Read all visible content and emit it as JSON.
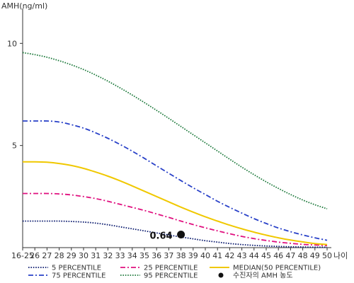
{
  "chart_data": {
    "type": "line",
    "ylabel": "AMH(ng/ml)",
    "xlabel": "나이",
    "categories": [
      "16-25",
      "26",
      "27",
      "28",
      "29",
      "30",
      "31",
      "32",
      "33",
      "34",
      "35",
      "36",
      "37",
      "38",
      "39",
      "40",
      "41",
      "42",
      "43",
      "44",
      "45",
      "46",
      "47",
      "48",
      "49",
      "50"
    ],
    "yticks": [
      5,
      10
    ],
    "ylim": [
      0,
      11.5
    ],
    "grid": false,
    "legend_position": "bottom",
    "series": [
      {
        "name": "5 PERCENTILE",
        "color": "#0a1a6e",
        "style": "dotted",
        "values": [
          1.3,
          1.3,
          1.3,
          1.3,
          1.28,
          1.25,
          1.2,
          1.12,
          1.02,
          0.92,
          0.82,
          0.72,
          0.62,
          0.52,
          0.43,
          0.34,
          0.27,
          0.2,
          0.15,
          0.11,
          0.08,
          0.06,
          0.04,
          0.03,
          0.02,
          0.02
        ]
      },
      {
        "name": "25 PERCENTILE",
        "color": "#e0107f",
        "style": "dash-dot",
        "values": [
          2.65,
          2.65,
          2.65,
          2.63,
          2.58,
          2.5,
          2.4,
          2.27,
          2.12,
          1.97,
          1.82,
          1.65,
          1.48,
          1.3,
          1.13,
          0.97,
          0.82,
          0.68,
          0.55,
          0.44,
          0.35,
          0.27,
          0.21,
          0.16,
          0.13,
          0.1
        ]
      },
      {
        "name": "MEDIAN(50 PERCENTILE)",
        "color": "#f0c800",
        "style": "solid",
        "values": [
          4.2,
          4.2,
          4.18,
          4.12,
          4.02,
          3.88,
          3.7,
          3.5,
          3.27,
          3.02,
          2.76,
          2.5,
          2.24,
          1.98,
          1.74,
          1.51,
          1.3,
          1.1,
          0.92,
          0.76,
          0.61,
          0.48,
          0.37,
          0.28,
          0.2,
          0.15
        ]
      },
      {
        "name": "75 PERCENTILE",
        "color": "#2840c8",
        "style": "dash-dot",
        "values": [
          6.2,
          6.2,
          6.2,
          6.15,
          6.02,
          5.85,
          5.62,
          5.35,
          5.05,
          4.72,
          4.37,
          4.0,
          3.64,
          3.28,
          2.93,
          2.6,
          2.27,
          1.97,
          1.69,
          1.42,
          1.18,
          0.96,
          0.78,
          0.62,
          0.48,
          0.36
        ]
      },
      {
        "name": "95 PERCENTILE",
        "color": "#1e7a3c",
        "style": "dotted",
        "values": [
          9.55,
          9.45,
          9.32,
          9.15,
          8.95,
          8.72,
          8.45,
          8.15,
          7.82,
          7.47,
          7.1,
          6.72,
          6.33,
          5.93,
          5.53,
          5.13,
          4.73,
          4.33,
          3.94,
          3.57,
          3.22,
          2.9,
          2.6,
          2.33,
          2.1,
          1.9
        ]
      }
    ],
    "annotations": [
      {
        "label": "0.64",
        "x": "38",
        "y": 0.64,
        "legend_name": "수진자의 AMH 농도",
        "color": "#111111"
      }
    ]
  }
}
